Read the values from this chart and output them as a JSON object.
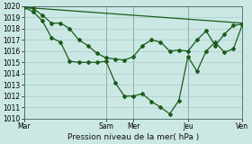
{
  "background_color": "#cce8e4",
  "grid_color": "#aacccc",
  "line_color": "#1a5c1a",
  "xlabel": "Pression niveau de la mer( hPa )",
  "ylim": [
    1010,
    1020
  ],
  "yticks": [
    1010,
    1011,
    1012,
    1013,
    1014,
    1015,
    1016,
    1017,
    1018,
    1019,
    1020
  ],
  "day_labels": [
    "Mar",
    "Sam",
    "Mer",
    "Jeu",
    "Ven"
  ],
  "day_positions": [
    0,
    9,
    12,
    18,
    24
  ],
  "xlim": [
    0,
    24
  ],
  "line1_x": [
    0,
    1,
    2,
    3,
    4,
    5,
    6,
    7,
    8,
    9,
    10,
    11,
    12,
    13,
    14,
    15,
    16,
    17,
    18,
    19,
    20,
    21,
    22,
    23,
    24
  ],
  "line1_y": [
    1019.9,
    1019.5,
    1018.7,
    1017.2,
    1016.8,
    1015.1,
    1015.0,
    1015.0,
    1015.0,
    1015.1,
    1013.2,
    1012.0,
    1012.0,
    1012.2,
    1011.5,
    1011.0,
    1010.4,
    1011.6,
    1015.5,
    1014.2,
    1016.0,
    1016.8,
    1015.9,
    1016.2,
    1018.4
  ],
  "line2_x": [
    0,
    1,
    2,
    3,
    4,
    5,
    6,
    7,
    8,
    9,
    10,
    11,
    12,
    13,
    14,
    15,
    16,
    17,
    18,
    19,
    20,
    21,
    22,
    23,
    24
  ],
  "line2_y": [
    1019.9,
    1019.8,
    1019.2,
    1018.5,
    1018.5,
    1018.0,
    1017.0,
    1016.5,
    1015.8,
    1015.4,
    1015.3,
    1015.2,
    1015.5,
    1016.5,
    1017.0,
    1016.8,
    1016.0,
    1016.1,
    1016.0,
    1017.0,
    1017.8,
    1016.5,
    1017.5,
    1018.3,
    1018.4
  ],
  "line3_x": [
    0,
    24
  ],
  "line3_y": [
    1019.9,
    1018.5
  ],
  "marker_size": 2.0,
  "linewidth": 0.9,
  "tick_fontsize": 5.5,
  "xlabel_fontsize": 6.5
}
